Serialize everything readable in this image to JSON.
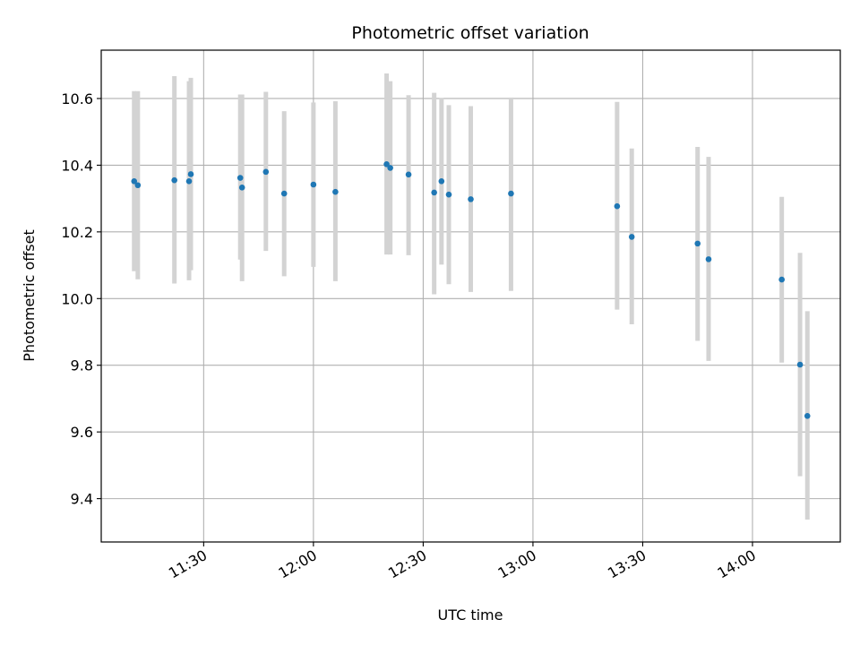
{
  "chart_data": {
    "type": "scatter",
    "title": "Photometric offset variation",
    "xlabel": "UTC time",
    "ylabel": "Photometric offset",
    "xlim": [
      "11:02",
      "14:24"
    ],
    "ylim": [
      9.27,
      10.745
    ],
    "x_ticks": [
      "11:30",
      "12:00",
      "12:30",
      "13:00",
      "13:30",
      "14:00"
    ],
    "y_ticks": [
      9.4,
      9.6,
      9.8,
      10.0,
      10.2,
      10.4,
      10.6
    ],
    "y_tick_labels": [
      "9.4",
      "9.6",
      "9.8",
      "10.0",
      "10.2",
      "10.4",
      "10.6"
    ],
    "grid": true,
    "colors": {
      "point": "#1f77b4",
      "errorbar": "#d3d3d3",
      "grid": "#b0b0b0"
    },
    "points": [
      {
        "x": "11:11",
        "y": 10.352,
        "low": 10.082,
        "high": 10.622
      },
      {
        "x": "11:12",
        "y": 10.34,
        "low": 10.058,
        "high": 10.622
      },
      {
        "x": "11:22",
        "y": 10.355,
        "low": 10.045,
        "high": 10.667
      },
      {
        "x": "11:26",
        "y": 10.352,
        "low": 10.055,
        "high": 10.652
      },
      {
        "x": "11:26",
        "y": 10.373,
        "low": 10.085,
        "high": 10.662
      },
      {
        "x": "11:40",
        "y": 10.362,
        "low": 10.117,
        "high": 10.612
      },
      {
        "x": "11:40",
        "y": 10.333,
        "low": 10.052,
        "high": 10.612
      },
      {
        "x": "11:47",
        "y": 10.38,
        "low": 10.143,
        "high": 10.62
      },
      {
        "x": "11:52",
        "y": 10.315,
        "low": 10.067,
        "high": 10.562
      },
      {
        "x": "12:00",
        "y": 10.342,
        "low": 10.095,
        "high": 10.588
      },
      {
        "x": "12:06",
        "y": 10.32,
        "low": 10.052,
        "high": 10.592
      },
      {
        "x": "12:20",
        "y": 10.403,
        "low": 10.132,
        "high": 10.675
      },
      {
        "x": "12:21",
        "y": 10.392,
        "low": 10.132,
        "high": 10.652
      },
      {
        "x": "12:26",
        "y": 10.372,
        "low": 10.13,
        "high": 10.61
      },
      {
        "x": "12:33",
        "y": 10.318,
        "low": 10.013,
        "high": 10.617
      },
      {
        "x": "12:35",
        "y": 10.352,
        "low": 10.102,
        "high": 10.602
      },
      {
        "x": "12:37",
        "y": 10.312,
        "low": 10.043,
        "high": 10.58
      },
      {
        "x": "12:43",
        "y": 10.298,
        "low": 10.02,
        "high": 10.577
      },
      {
        "x": "12:54",
        "y": 10.315,
        "low": 10.023,
        "high": 10.603
      },
      {
        "x": "13:23",
        "y": 10.277,
        "low": 9.967,
        "high": 10.59
      },
      {
        "x": "13:27",
        "y": 10.185,
        "low": 9.923,
        "high": 10.45
      },
      {
        "x": "13:45",
        "y": 10.165,
        "low": 9.873,
        "high": 10.455
      },
      {
        "x": "13:48",
        "y": 10.118,
        "low": 9.813,
        "high": 10.425
      },
      {
        "x": "14:08",
        "y": 10.057,
        "low": 9.808,
        "high": 10.305
      },
      {
        "x": "14:13",
        "y": 9.802,
        "low": 9.467,
        "high": 10.137
      },
      {
        "x": "14:15",
        "y": 9.648,
        "low": 9.337,
        "high": 9.962
      }
    ]
  }
}
